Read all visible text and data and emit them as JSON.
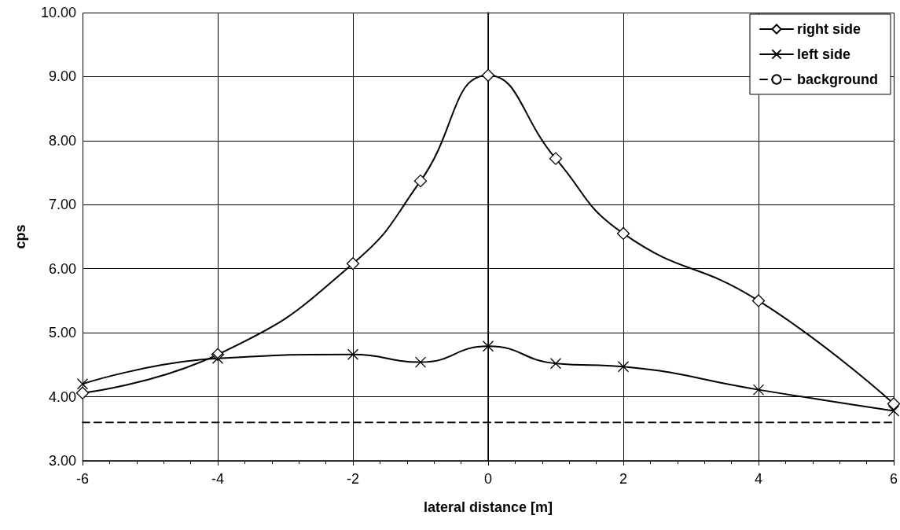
{
  "chart_data": {
    "type": "line",
    "xlabel": "lateral distance [m]",
    "ylabel": "cps",
    "x": [
      -6,
      -4,
      -2,
      -1,
      0,
      1,
      2,
      4,
      6
    ],
    "series": [
      {
        "name": "right side",
        "color": "#000000",
        "marker": "diamond",
        "line_style": "solid",
        "values": [
          4.06,
          4.66,
          6.08,
          7.37,
          9.02,
          7.72,
          6.55,
          5.5,
          3.89
        ]
      },
      {
        "name": "left side",
        "color": "#000000",
        "marker": "cross",
        "line_style": "solid",
        "values": [
          4.2,
          4.6,
          4.66,
          4.54,
          4.79,
          4.52,
          4.47,
          4.11,
          3.78
        ]
      },
      {
        "name": "background",
        "color": "#000000",
        "marker": "none",
        "line_style": "dashed",
        "x": [
          -6,
          6
        ],
        "values": [
          3.6,
          3.6
        ]
      }
    ],
    "xlim": [
      -6,
      6
    ],
    "xticks": [
      -6,
      -4,
      -2,
      0,
      2,
      4,
      6
    ],
    "ylim": [
      3,
      10
    ],
    "yticks": [
      {
        "value": 3,
        "label": "3.00"
      },
      {
        "value": 4,
        "label": "4.00"
      },
      {
        "value": 5,
        "label": "5.00"
      },
      {
        "value": 6,
        "label": "6.00"
      },
      {
        "value": 7,
        "label": "7.00"
      },
      {
        "value": 8,
        "label": "8.00"
      },
      {
        "value": 9,
        "label": "9.00"
      },
      {
        "value": 10,
        "label": "10.00"
      }
    ],
    "grid": true,
    "legend": "top right"
  }
}
